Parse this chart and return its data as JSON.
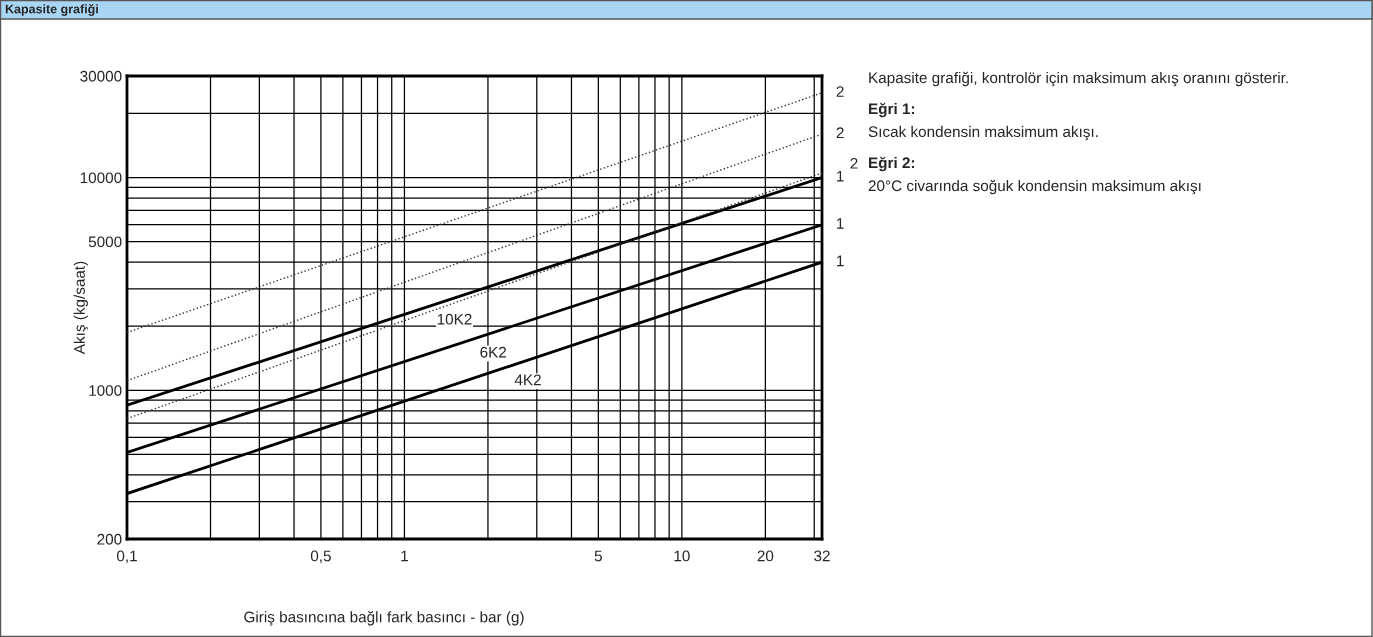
{
  "chart_data": {
    "type": "line",
    "title": "Kapasite grafiği",
    "xlabel": "Giriş basıncına bağlı fark basıncı - bar (g)",
    "ylabel": "Akış (kg/saat)",
    "log": "xy",
    "grid": true,
    "legend": false,
    "xlim": [
      0.1,
      32
    ],
    "ylim": [
      200,
      30000
    ],
    "xticks": [
      {
        "value": 0.1,
        "label": "0,1"
      },
      {
        "value": 0.2,
        "label": null
      },
      {
        "value": 0.3,
        "label": null
      },
      {
        "value": 0.4,
        "label": null
      },
      {
        "value": 0.5,
        "label": "0,5"
      },
      {
        "value": 0.6,
        "label": null
      },
      {
        "value": 0.7,
        "label": null
      },
      {
        "value": 0.8,
        "label": null
      },
      {
        "value": 0.9,
        "label": null
      },
      1,
      {
        "value": 2,
        "label": null
      },
      {
        "value": 3,
        "label": null
      },
      {
        "value": 4,
        "label": null
      },
      5,
      {
        "value": 6,
        "label": null
      },
      {
        "value": 7,
        "label": null
      },
      {
        "value": 8,
        "label": null
      },
      {
        "value": 9,
        "label": null
      },
      10,
      20,
      {
        "value": 30,
        "label": null
      },
      32
    ],
    "yticks": [
      200,
      {
        "value": 300,
        "label": null
      },
      {
        "value": 400,
        "label": null
      },
      {
        "value": 500,
        "label": null
      },
      {
        "value": 600,
        "label": null
      },
      {
        "value": 700,
        "label": null
      },
      {
        "value": 800,
        "label": null
      },
      {
        "value": 900,
        "label": null
      },
      1000,
      {
        "value": 2000,
        "label": null
      },
      {
        "value": 3000,
        "label": null
      },
      {
        "value": 4000,
        "label": null
      },
      5000,
      {
        "value": 6000,
        "label": null
      },
      {
        "value": 7000,
        "label": null
      },
      {
        "value": 8000,
        "label": null
      },
      {
        "value": 9000,
        "label": null
      },
      10000,
      {
        "value": 20000,
        "label": null
      },
      30000
    ],
    "x": [
      0.1,
      32
    ],
    "series": [
      {
        "color": "#000000",
        "line_style": "solid",
        "values": [
          850,
          10000
        ]
      },
      {
        "color": "#000000",
        "line_style": "solid",
        "values": [
          510,
          6000
        ]
      },
      {
        "color": "#000000",
        "line_style": "solid",
        "values": [
          327,
          4000
        ]
      },
      {
        "color": "#333333",
        "line_style": "dotted",
        "values": [
          1870,
          25000
        ]
      },
      {
        "color": "#333333",
        "line_style": "dotted",
        "values": [
          1110,
          16000
        ]
      },
      {
        "color": "#333333",
        "line_style": "dotted",
        "values": [
          736,
          10500
        ]
      }
    ],
    "annotations": [
      {
        "text": "10K2",
        "x": 1.4,
        "y": 2626
      },
      {
        "text": "6K2",
        "x": 2.0,
        "y": 1837
      },
      {
        "text": "4K2",
        "x": 2.67,
        "y": 1362
      },
      {
        "text": "1",
        "x": 32,
        "y": 10000
      },
      {
        "text": "1",
        "x": 32,
        "y": 6000
      },
      {
        "text": "1",
        "x": 32,
        "y": 4000
      },
      {
        "text": "2",
        "x": 32,
        "y": 25000
      },
      {
        "text": "2",
        "x": 32,
        "y": 16000
      },
      {
        "text": "2",
        "x": 32,
        "y": 10500
      },
      "Kapasite grafiği, kontrolör için maksimum akış oranını gösterir.",
      "Eğri 1:",
      "Sıcak kondensin maksimum akışı.",
      "Eğri 2:",
      "20°C civarında soğuk kondensin maksimum akışı"
    ]
  }
}
